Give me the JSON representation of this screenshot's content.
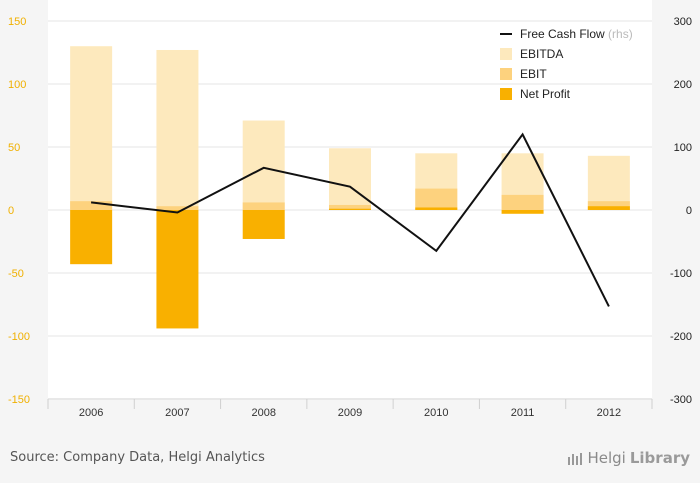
{
  "chart_data": {
    "type": "bar",
    "categories": [
      "2006",
      "2007",
      "2008",
      "2009",
      "2010",
      "2011",
      "2012"
    ],
    "series": [
      {
        "name": "EBITDA",
        "type": "bar",
        "axis": "left",
        "values": [
          130,
          127,
          71,
          49,
          45,
          45,
          43
        ]
      },
      {
        "name": "EBIT",
        "type": "bar",
        "axis": "left",
        "values": [
          7,
          3,
          6,
          4,
          17,
          12,
          7
        ]
      },
      {
        "name": "Net Profit",
        "type": "bar",
        "axis": "left",
        "values": [
          -43,
          -94,
          -23,
          1,
          2,
          -3,
          3
        ]
      },
      {
        "name": "Free Cash Flow",
        "type": "line",
        "axis": "right",
        "values": [
          12,
          -4,
          67,
          37,
          -65,
          120,
          -153
        ]
      }
    ],
    "left_axis": {
      "ylim": [
        -150,
        150
      ],
      "ticks": [
        "150",
        "100",
        "50",
        "0",
        "-50",
        "-100",
        "-150"
      ]
    },
    "right_axis": {
      "ylim": [
        -300,
        300
      ],
      "ticks": [
        "300",
        "200",
        "100",
        "0",
        "-100",
        "-200",
        "-300"
      ]
    },
    "legend": {
      "placement": "top-right",
      "suffix": "(rhs)"
    },
    "grid": true,
    "colors": {
      "ebitda": "#fde9bd",
      "ebit": "#fdd27e",
      "net_profit": "#f9b000",
      "fcf": "#111111",
      "left_tick": "#f0b000",
      "right_tick": "#222222"
    }
  },
  "footer": {
    "source": "Source: Company Data, Helgi Analytics",
    "brand_prefix": "Helgi",
    "brand_suffix": "Library"
  }
}
